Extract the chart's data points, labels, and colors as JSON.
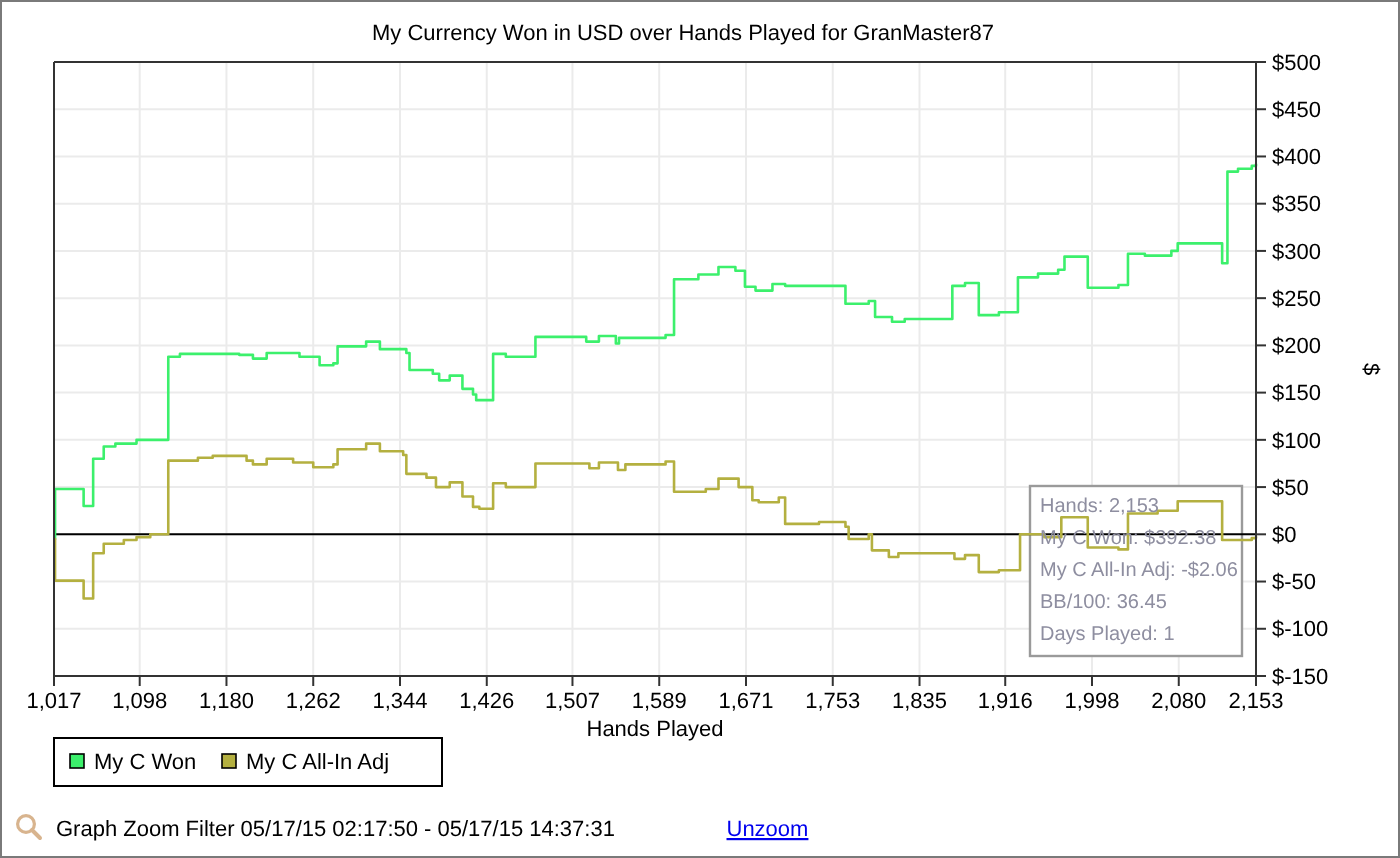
{
  "chart_data": {
    "type": "step",
    "title": "My Currency Won in USD over Hands Played for GranMaster87",
    "xlabel": "Hands Played",
    "ylabel": "$",
    "series": [
      {
        "name": "My C Won",
        "color": "#3cf06c",
        "x": [
          1017,
          1018,
          1045,
          1054,
          1064,
          1075,
          1095,
          1125,
          1136,
          1192,
          1205,
          1218,
          1249,
          1268,
          1281,
          1285,
          1312,
          1325,
          1350,
          1353,
          1375,
          1381,
          1391,
          1403,
          1413,
          1416,
          1432,
          1444,
          1472,
          1520,
          1532,
          1548,
          1551,
          1595,
          1603,
          1626,
          1645,
          1661,
          1670,
          1680,
          1696,
          1708,
          1765,
          1787,
          1793,
          1809,
          1821,
          1866,
          1878,
          1891,
          1910,
          1928,
          1947,
          1966,
          1972,
          1994,
          2023,
          2032,
          2048,
          2073,
          2079,
          2121,
          2126,
          2136,
          2149,
          2153
        ],
        "values": [
          -5,
          48,
          30,
          80,
          93,
          96,
          100,
          188,
          191,
          190,
          186,
          192,
          188,
          179,
          181,
          199,
          204,
          196,
          192,
          174,
          170,
          163,
          168,
          154,
          148,
          142,
          191,
          188,
          209,
          204,
          210,
          202,
          208,
          211,
          270,
          275,
          283,
          279,
          262,
          258,
          265,
          263,
          244,
          247,
          230,
          225,
          228,
          263,
          266,
          232,
          235,
          272,
          276,
          280,
          294,
          261,
          264,
          297,
          295,
          300,
          308,
          287,
          384,
          387,
          390,
          392.38
        ]
      },
      {
        "name": "My C All-In Adj",
        "color": "#b4b040",
        "x": [
          1017,
          1018,
          1045,
          1054,
          1064,
          1083,
          1095,
          1108,
          1125,
          1153,
          1167,
          1199,
          1205,
          1218,
          1243,
          1262,
          1281,
          1285,
          1312,
          1325,
          1347,
          1350,
          1369,
          1378,
          1391,
          1403,
          1413,
          1419,
          1432,
          1444,
          1472,
          1523,
          1532,
          1550,
          1557,
          1595,
          1603,
          1633,
          1645,
          1664,
          1677,
          1683,
          1702,
          1708,
          1740,
          1765,
          1768,
          1787,
          1790,
          1806,
          1815,
          1868,
          1878,
          1891,
          1910,
          1930,
          1953,
          1969,
          1994,
          2023,
          2032,
          2060,
          2079,
          2121,
          2149,
          2153
        ],
        "values": [
          -5,
          -49,
          -68,
          -20,
          -10,
          -6,
          -3,
          0,
          78,
          81,
          83,
          78,
          74,
          80,
          76,
          71,
          74,
          90,
          96,
          88,
          84,
          64,
          60,
          50,
          55,
          40,
          29,
          27,
          54,
          50,
          75,
          70,
          76,
          68,
          74,
          77,
          45,
          48,
          59,
          50,
          36,
          34,
          39,
          11,
          13,
          8,
          -5,
          0,
          -17,
          -24,
          -20,
          -26,
          -22,
          -40,
          -38,
          0,
          -3,
          18,
          -14,
          -16,
          22,
          25,
          35,
          -6,
          -4,
          -2.06
        ]
      }
    ],
    "xlim": [
      1017,
      2153
    ],
    "xticks": [
      {
        "value": 1017,
        "label": "1,017"
      },
      {
        "value": 1098,
        "label": "1,098"
      },
      {
        "value": 1180,
        "label": "1,180"
      },
      {
        "value": 1262,
        "label": "1,262"
      },
      {
        "value": 1344,
        "label": "1,344"
      },
      {
        "value": 1426,
        "label": "1,426"
      },
      {
        "value": 1507,
        "label": "1,507"
      },
      {
        "value": 1589,
        "label": "1,589"
      },
      {
        "value": 1671,
        "label": "1,671"
      },
      {
        "value": 1753,
        "label": "1,753"
      },
      {
        "value": 1835,
        "label": "1,835"
      },
      {
        "value": 1916,
        "label": "1,916"
      },
      {
        "value": 1998,
        "label": "1,998"
      },
      {
        "value": 2080,
        "label": "2,080"
      },
      {
        "value": 2153,
        "label": "2,153"
      }
    ],
    "ylim": [
      -150,
      500
    ],
    "yticks": [
      {
        "value": -150,
        "label": "$-150"
      },
      {
        "value": -100,
        "label": "$-100"
      },
      {
        "value": -50,
        "label": "$-50"
      },
      {
        "value": 0,
        "label": "$0"
      },
      {
        "value": 50,
        "label": "$50"
      },
      {
        "value": 100,
        "label": "$100"
      },
      {
        "value": 150,
        "label": "$150"
      },
      {
        "value": 200,
        "label": "$200"
      },
      {
        "value": 250,
        "label": "$250"
      },
      {
        "value": 300,
        "label": "$300"
      },
      {
        "value": 350,
        "label": "$350"
      },
      {
        "value": 400,
        "label": "$400"
      },
      {
        "value": 450,
        "label": "$450"
      },
      {
        "value": 500,
        "label": "$500"
      }
    ],
    "grid": true,
    "legend": "bottom left",
    "ref_lines": [
      {
        "axis": "y",
        "value": 0,
        "color": "#000000"
      }
    ],
    "annotations": [
      "Hands: 2,153",
      "My C Won: $392.38",
      "My C All-In Adj: -$2.06",
      "BB/100: 36.45",
      "Days Played: 1",
      "Graph Zoom Filter 05/17/15 02:17:50 - 05/17/15 14:37:31",
      "Unzoom"
    ]
  }
}
